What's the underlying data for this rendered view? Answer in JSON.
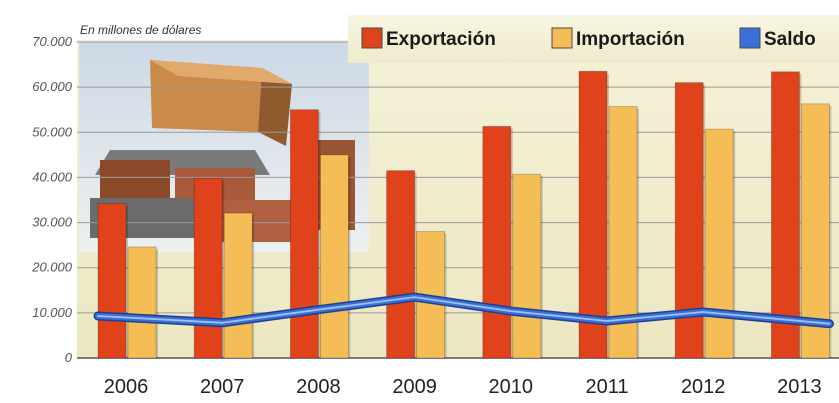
{
  "chart_data": {
    "type": "bar",
    "unit_note": "En millones de dólares",
    "categories": [
      "2006",
      "2007",
      "2008",
      "2009",
      "2010",
      "2011",
      "2012",
      "2013"
    ],
    "series": [
      {
        "name": "Exportación",
        "type": "bar",
        "color": "#e0421c",
        "values": [
          34200,
          39800,
          55000,
          41500,
          51300,
          63500,
          61000,
          63400
        ]
      },
      {
        "name": "Importación",
        "type": "bar",
        "color": "#f5bd55",
        "values": [
          24600,
          32100,
          45000,
          28000,
          40700,
          55700,
          50700,
          56300
        ]
      },
      {
        "name": "Saldo",
        "type": "line",
        "color": "#3a6fd8",
        "values": [
          9300,
          7800,
          10700,
          13500,
          10400,
          8200,
          10200,
          7600
        ]
      }
    ],
    "ylim": [
      0,
      70000
    ],
    "yticks": [
      "0",
      "10.000",
      "20.000",
      "30.000",
      "40.000",
      "50.000",
      "60.000",
      "70.000"
    ],
    "grid": true,
    "legend_position": "top-right"
  }
}
